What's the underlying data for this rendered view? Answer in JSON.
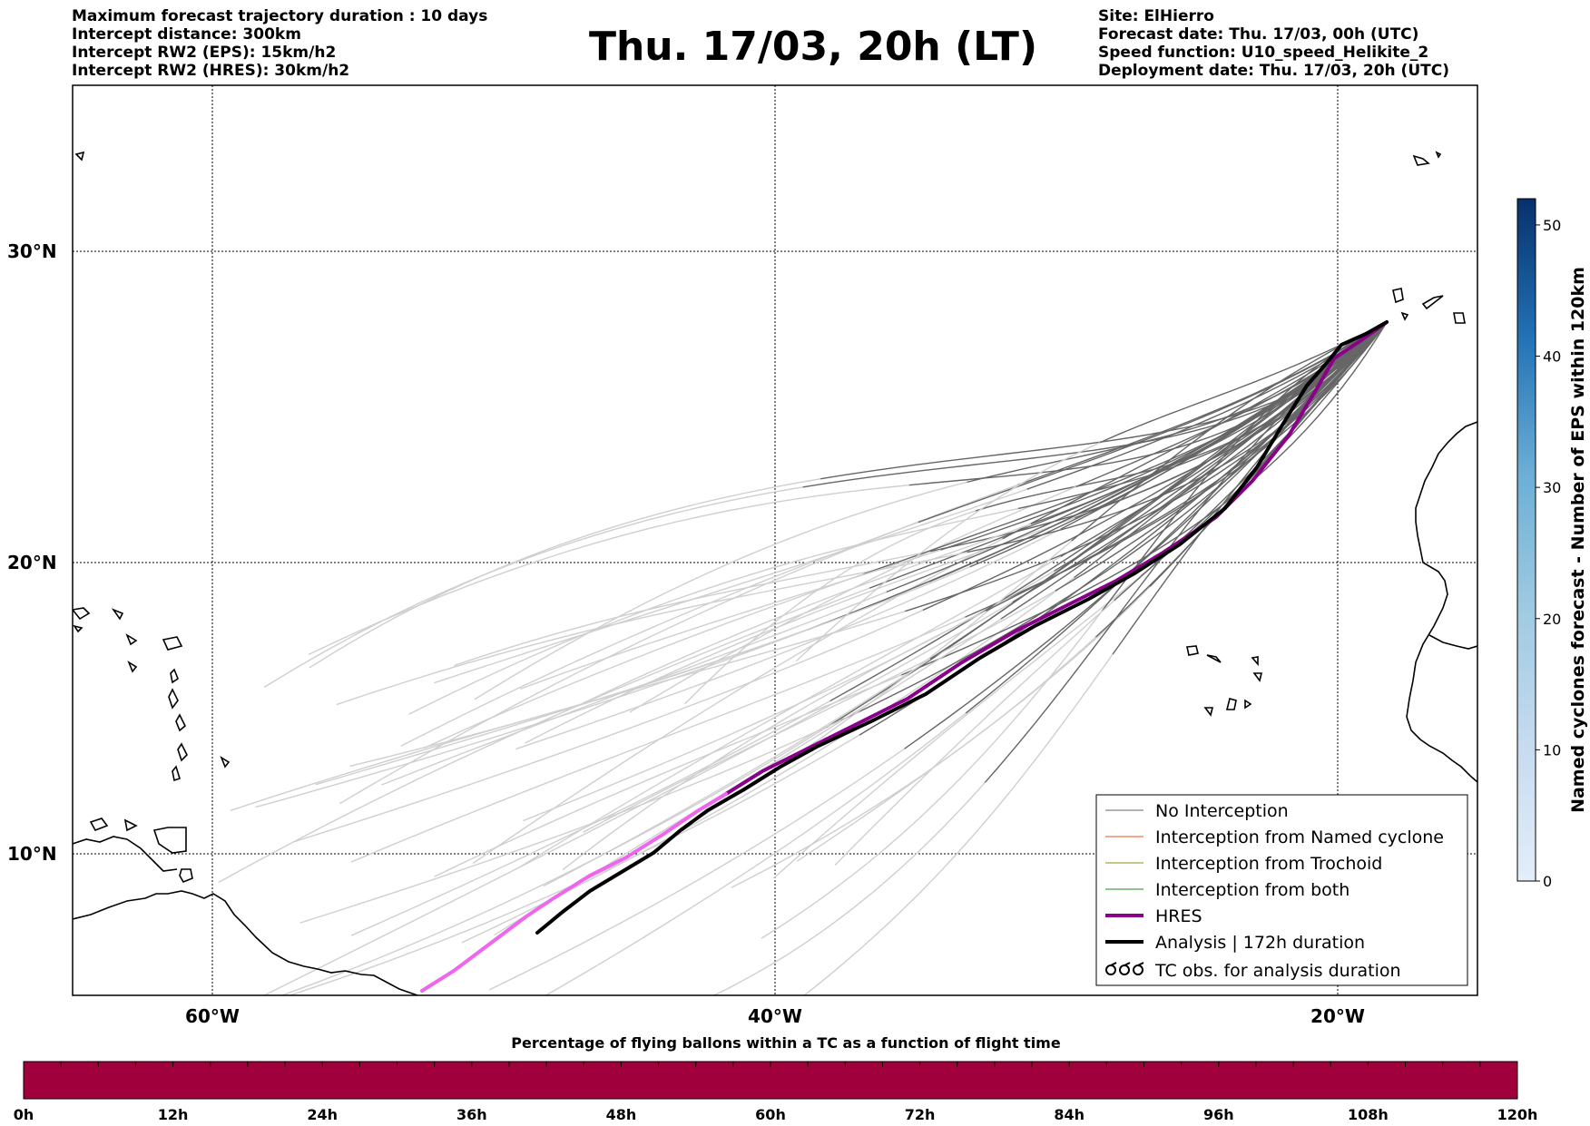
{
  "header": {
    "left": [
      "Maximum forecast trajectory duration : 10 days",
      "Intercept distance: 300km",
      "Intercept RW2 (EPS):  15km/h2",
      "Intercept RW2 (HRES): 30km/h2"
    ],
    "title": "Thu. 17/03, 20h (LT)",
    "right": [
      "Site: ElHierro",
      "Forecast date: Thu. 17/03, 00h (UTC)",
      "Speed function: U10_speed_Helikite_2",
      "Deployment date: Thu. 17/03, 20h (UTC)"
    ]
  },
  "map": {
    "lat_labels": [
      "30°N",
      "20°N",
      "10°N"
    ],
    "lon_labels": [
      "60°W",
      "40°W",
      "20°W"
    ]
  },
  "legend": {
    "items": [
      {
        "label": "No Interception",
        "color": "#666666",
        "kind": "thin"
      },
      {
        "label": "Interception from Named cyclone",
        "color": "#e8501a",
        "kind": "thin"
      },
      {
        "label": "Interception from Trochoid",
        "color": "#8c8c1e",
        "kind": "thin"
      },
      {
        "label": "Interception from both",
        "color": "#1e8c1e",
        "kind": "thin"
      },
      {
        "label": "HRES",
        "color": "#8b008b",
        "kind": "thick"
      },
      {
        "label": "Analysis | 172h duration",
        "color": "#000000",
        "kind": "thick"
      },
      {
        "label": "TC obs. for analysis duration",
        "color": "#000000",
        "kind": "symbol"
      }
    ]
  },
  "colorbar": {
    "label": "Named cyclones forecast - Number of EPS within 120km",
    "ticks": [
      "0",
      "10",
      "20",
      "30",
      "40",
      "50"
    ],
    "color_low": "#e3eef9",
    "color_high": "#08306b"
  },
  "timeline": {
    "label": "Percentage of flying ballons within a TC as a function of flight time",
    "ticks": [
      "0h",
      "12h",
      "24h",
      "36h",
      "48h",
      "60h",
      "72h",
      "84h",
      "96h",
      "108h",
      "120h"
    ],
    "bar_color": "#a0003c"
  }
}
